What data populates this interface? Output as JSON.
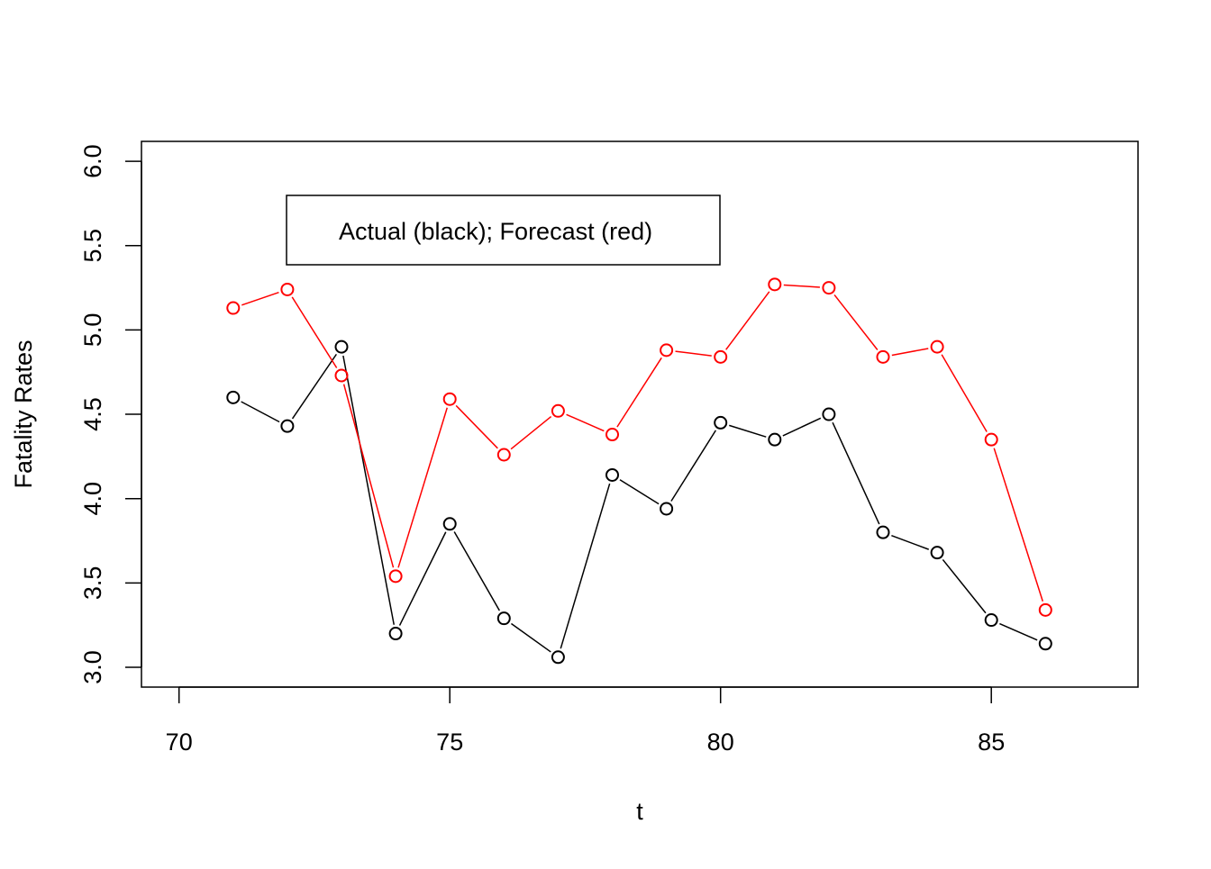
{
  "chart_data": {
    "type": "line",
    "title": "",
    "xlabel": "t",
    "ylabel": "Fatality Rates",
    "xlim": [
      70,
      87
    ],
    "ylim": [
      3.0,
      6.0
    ],
    "x_ticks": [
      "70",
      "75",
      "80",
      "85"
    ],
    "y_ticks": [
      "3.0",
      "3.5",
      "4.0",
      "4.5",
      "5.0",
      "5.5",
      "6.0"
    ],
    "x": [
      71,
      72,
      73,
      74,
      75,
      76,
      77,
      78,
      79,
      80,
      81,
      82,
      83,
      84,
      85,
      86
    ],
    "series": [
      {
        "color": "#000000",
        "marker": "open-circle",
        "values": [
          4.6,
          4.43,
          4.9,
          3.2,
          3.85,
          3.29,
          3.06,
          4.14,
          3.94,
          4.45,
          4.35,
          4.5,
          3.8,
          3.68,
          3.28,
          3.14
        ]
      },
      {
        "color": "#ff0000",
        "marker": "open-circle",
        "values": [
          5.13,
          5.24,
          4.73,
          3.54,
          4.59,
          4.26,
          4.52,
          4.38,
          4.88,
          4.84,
          5.27,
          5.25,
          4.84,
          4.9,
          4.35,
          3.34
        ]
      }
    ],
    "legend": {
      "text": "Actual (black); Forecast (red)",
      "position": "top-left"
    },
    "grid": false
  }
}
